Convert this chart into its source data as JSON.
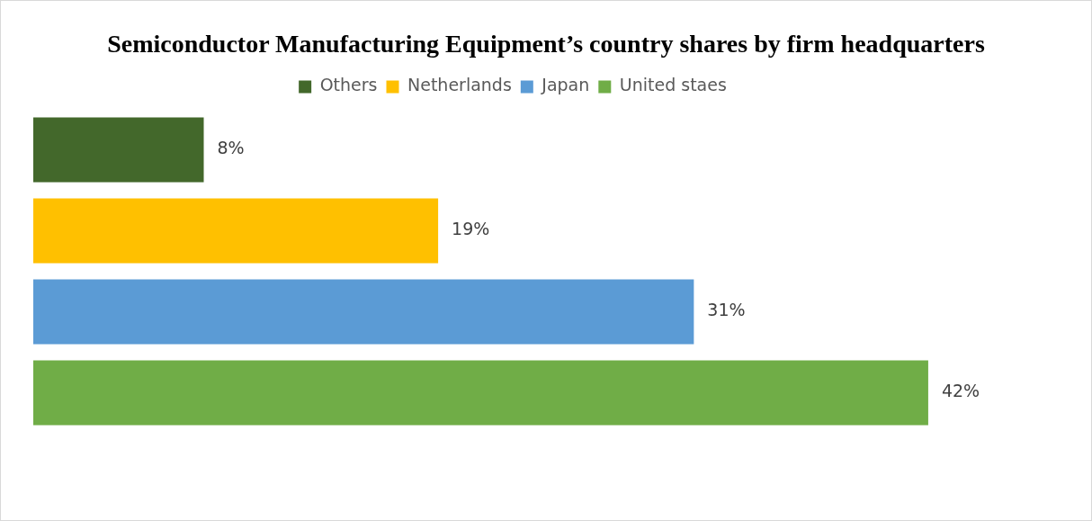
{
  "chart_data": {
    "type": "bar",
    "orientation": "horizontal",
    "title": "Semiconductor Manufacturing Equipment’s country shares by firm headquarters",
    "categories": [
      null
    ],
    "legend": "top",
    "series": [
      {
        "name": "Others",
        "color": "#43682b",
        "values": [
          8
        ],
        "value_labels": [
          "8%"
        ]
      },
      {
        "name": "Netherlands",
        "color": "#ffc000",
        "values": [
          19
        ],
        "value_labels": [
          "19%"
        ]
      },
      {
        "name": "Japan",
        "color": "#5b9bd5",
        "values": [
          31
        ],
        "value_labels": [
          "31%"
        ]
      },
      {
        "name": "United staes",
        "color": "#70ad47",
        "values": [
          42
        ],
        "value_labels": [
          "42%"
        ]
      }
    ]
  }
}
